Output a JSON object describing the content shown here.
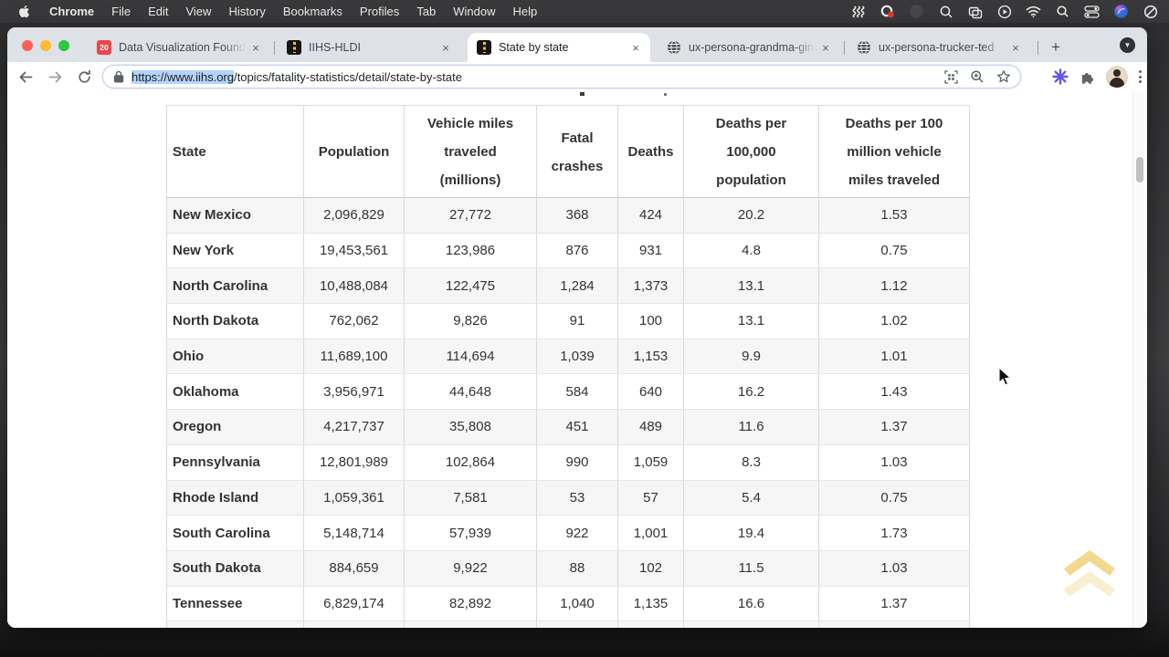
{
  "menubar": {
    "menus": [
      "Chrome",
      "File",
      "Edit",
      "View",
      "History",
      "Bookmarks",
      "Profiles",
      "Tab",
      "Window",
      "Help"
    ],
    "status_icons": [
      "waves-icon",
      "cloud-record-icon",
      "dimmed-app-icon",
      "loupe-icon",
      "screen-windows-icon",
      "play-circle-icon",
      "wifi-icon",
      "spotlight-search-icon",
      "control-center-icon",
      "colorful-app-icon",
      "do-not-disturb-icon"
    ]
  },
  "window": {
    "tabs": [
      {
        "label": "Data Visualization Founda",
        "favicon": "calendar-icon",
        "badge": "20"
      },
      {
        "label": "IIHS-HLDI",
        "favicon": "road-icon"
      },
      {
        "label": "State by state",
        "favicon": "road-icon",
        "active": true
      },
      {
        "label": "ux-persona-grandma-gin",
        "favicon": "globe-icon"
      },
      {
        "label": "ux-persona-trucker-ted",
        "favicon": "globe-icon"
      }
    ],
    "toolbar": {
      "url_selected": "https://www.iihs.org",
      "url_rest": "/topics/fatality-statistics/detail/state-by-state",
      "new_tab_label": "+",
      "close_label": "×"
    }
  },
  "page": {
    "table": {
      "headers": [
        "State",
        "Population",
        "Vehicle miles\ntraveled\n(millions)",
        "Fatal\ncrashes",
        "Deaths",
        "Deaths per\n100,000\npopulation",
        "Deaths per 100\nmillion vehicle\nmiles traveled"
      ],
      "rows": [
        [
          "New Mexico",
          "2,096,829",
          "27,772",
          "368",
          "424",
          "20.2",
          "1.53"
        ],
        [
          "New York",
          "19,453,561",
          "123,986",
          "876",
          "931",
          "4.8",
          "0.75"
        ],
        [
          "North Carolina",
          "10,488,084",
          "122,475",
          "1,284",
          "1,373",
          "13.1",
          "1.12"
        ],
        [
          "North Dakota",
          "762,062",
          "9,826",
          "91",
          "100",
          "13.1",
          "1.02"
        ],
        [
          "Ohio",
          "11,689,100",
          "114,694",
          "1,039",
          "1,153",
          "9.9",
          "1.01"
        ],
        [
          "Oklahoma",
          "3,956,971",
          "44,648",
          "584",
          "640",
          "16.2",
          "1.43"
        ],
        [
          "Oregon",
          "4,217,737",
          "35,808",
          "451",
          "489",
          "11.6",
          "1.37"
        ],
        [
          "Pennsylvania",
          "12,801,989",
          "102,864",
          "990",
          "1,059",
          "8.3",
          "1.03"
        ],
        [
          "Rhode Island",
          "1,059,361",
          "7,581",
          "53",
          "57",
          "5.4",
          "0.75"
        ],
        [
          "South Carolina",
          "5,148,714",
          "57,939",
          "922",
          "1,001",
          "19.4",
          "1.73"
        ],
        [
          "South Dakota",
          "884,659",
          "9,922",
          "88",
          "102",
          "11.5",
          "1.03"
        ],
        [
          "Tennessee",
          "6,829,174",
          "82,892",
          "1,040",
          "1,135",
          "16.6",
          "1.37"
        ]
      ]
    },
    "colors": {
      "row_stripe": "#f6f6f6",
      "selection_highlight": "#b3d4fc",
      "scroll_top_gold": "#e9c452",
      "tabstrip": "#dee1e6",
      "menubar": "#39393b"
    }
  }
}
